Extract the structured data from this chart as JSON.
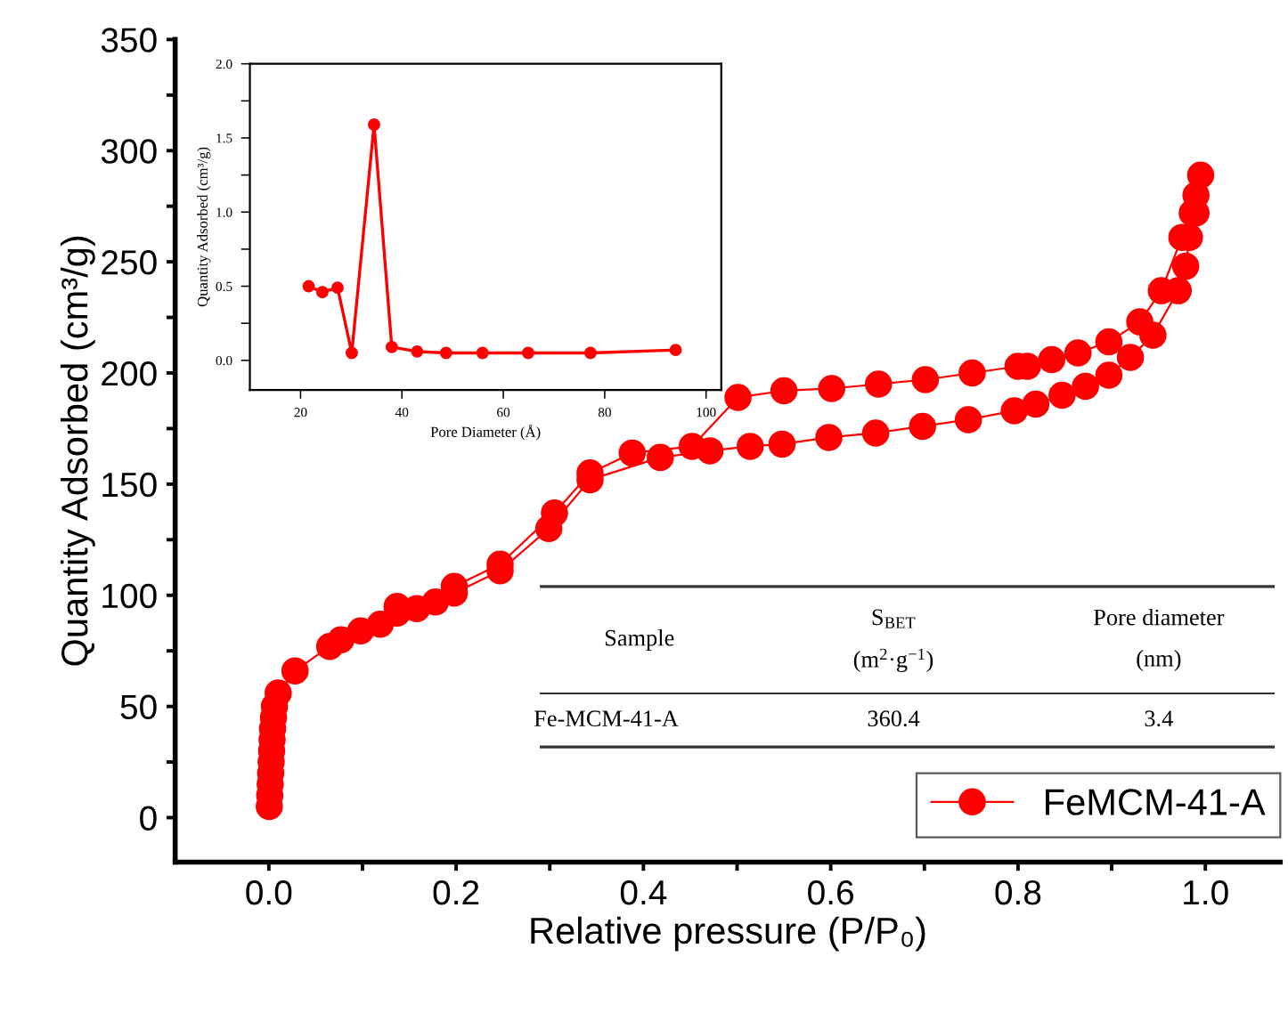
{
  "chart_data": [
    {
      "type": "line",
      "xlabel": "Relative pressure (P/P₀)",
      "ylabel": "Quantity Adsorbed (cm³/g)",
      "xlim": [
        -0.1,
        1.08
      ],
      "ylim": [
        -20,
        350
      ],
      "xticks": [
        {
          "value": 0,
          "label": "0.0"
        },
        {
          "value": 0.1,
          "label": null
        },
        {
          "value": 0.2,
          "label": "0.2"
        },
        {
          "value": 0.3,
          "label": null
        },
        {
          "value": 0.4,
          "label": "0.4"
        },
        {
          "value": 0.5,
          "label": null
        },
        {
          "value": 0.6,
          "label": "0.6"
        },
        {
          "value": 0.7,
          "label": null
        },
        {
          "value": 0.8,
          "label": "0.8"
        },
        {
          "value": 0.9,
          "label": null
        },
        {
          "value": 1.0,
          "label": "1.0"
        }
      ],
      "yticks": [
        0,
        {
          "value": 25,
          "label": null
        },
        50,
        {
          "value": 75,
          "label": null
        },
        100,
        {
          "value": 125,
          "label": null
        },
        150,
        {
          "value": 175,
          "label": null
        },
        200,
        {
          "value": 225,
          "label": null
        },
        250,
        {
          "value": 275,
          "label": null
        },
        300,
        {
          "value": 325,
          "label": null
        },
        350
      ],
      "marker": "circle",
      "line_style": "solid",
      "grid": false,
      "legend": "bottom right",
      "series": [
        {
          "name": "FeMCM-41-A",
          "color": "#ff0000",
          "x": [
            0.0005,
            0.001,
            0.0015,
            0.002,
            0.0025,
            0.003,
            0.0035,
            0.004,
            0.005,
            0.006,
            0.01,
            0.028,
            0.065,
            0.077,
            0.098,
            0.119,
            0.137,
            0.158,
            0.178,
            0.198,
            0.247,
            0.299,
            0.343,
            0.418,
            0.471,
            0.514,
            0.548,
            0.598,
            0.648,
            0.698,
            0.747,
            0.796,
            0.819,
            0.847,
            0.872,
            0.897,
            0.92,
            0.944,
            0.971,
            0.979,
            0.983,
            0.986,
            0.99,
            0.995,
            0.99,
            0.975,
            0.953,
            0.93,
            0.897,
            0.864,
            0.836,
            0.81,
            0.8,
            0.751,
            0.701,
            0.651,
            0.601,
            0.55,
            0.501,
            0.452,
            0.388,
            0.343,
            0.305,
            0.247,
            0.198,
            0.137
          ],
          "values": [
            5,
            10,
            15,
            20,
            25,
            30,
            35,
            40,
            45,
            50,
            56,
            66,
            77,
            80,
            84,
            87,
            92,
            94,
            97,
            101,
            111,
            130,
            152,
            162,
            165,
            167,
            168,
            171,
            173,
            176,
            179,
            183,
            186,
            190,
            194,
            199,
            207,
            217,
            237,
            248,
            261,
            272,
            280,
            289,
            272,
            261,
            237,
            223,
            214,
            209,
            206,
            203,
            203,
            200,
            197,
            195,
            193,
            192,
            189,
            167,
            164,
            155,
            137,
            114,
            104,
            95
          ]
        }
      ],
      "annotations": [
        "Sample",
        "S$_{BET}$",
        "(m$^{2}$·g$^{−1}$)",
        "Pore diameter",
        "(nm)",
        "Fe-MCM-41-A",
        "360.4",
        "3.4"
      ]
    },
    {
      "type": "line",
      "xlabel": "Pore Diameter (Å)",
      "ylabel": "Quantity Adsorbed (cm³/g)",
      "xlim": [
        10,
        103
      ],
      "ylim": [
        -0.2,
        2.0
      ],
      "xticks": [
        20,
        40,
        60,
        80,
        100
      ],
      "yticks": [
        {
          "value": 0,
          "label": "0.0"
        },
        {
          "value": 0.25,
          "label": null
        },
        {
          "value": 0.5,
          "label": "0.5"
        },
        {
          "value": 0.75,
          "label": null
        },
        {
          "value": 1.0,
          "label": "1.0"
        },
        {
          "value": 1.25,
          "label": null
        },
        {
          "value": 1.5,
          "label": "1.5"
        },
        {
          "value": 1.75,
          "label": null
        },
        {
          "value": 2.0,
          "label": "2.0"
        }
      ],
      "marker": "circle",
      "line_style": "solid",
      "grid": false,
      "series": [
        {
          "color": "#ff0000",
          "x": [
            21.6,
            24.3,
            27.3,
            30.1,
            34.5,
            38.0,
            43.0,
            48.7,
            55.9,
            64.9,
            77.2,
            94.0
          ],
          "values": [
            0.5,
            0.46,
            0.49,
            0.05,
            1.59,
            0.09,
            0.06,
            0.05,
            0.05,
            0.05,
            0.05,
            0.07
          ]
        }
      ]
    }
  ]
}
